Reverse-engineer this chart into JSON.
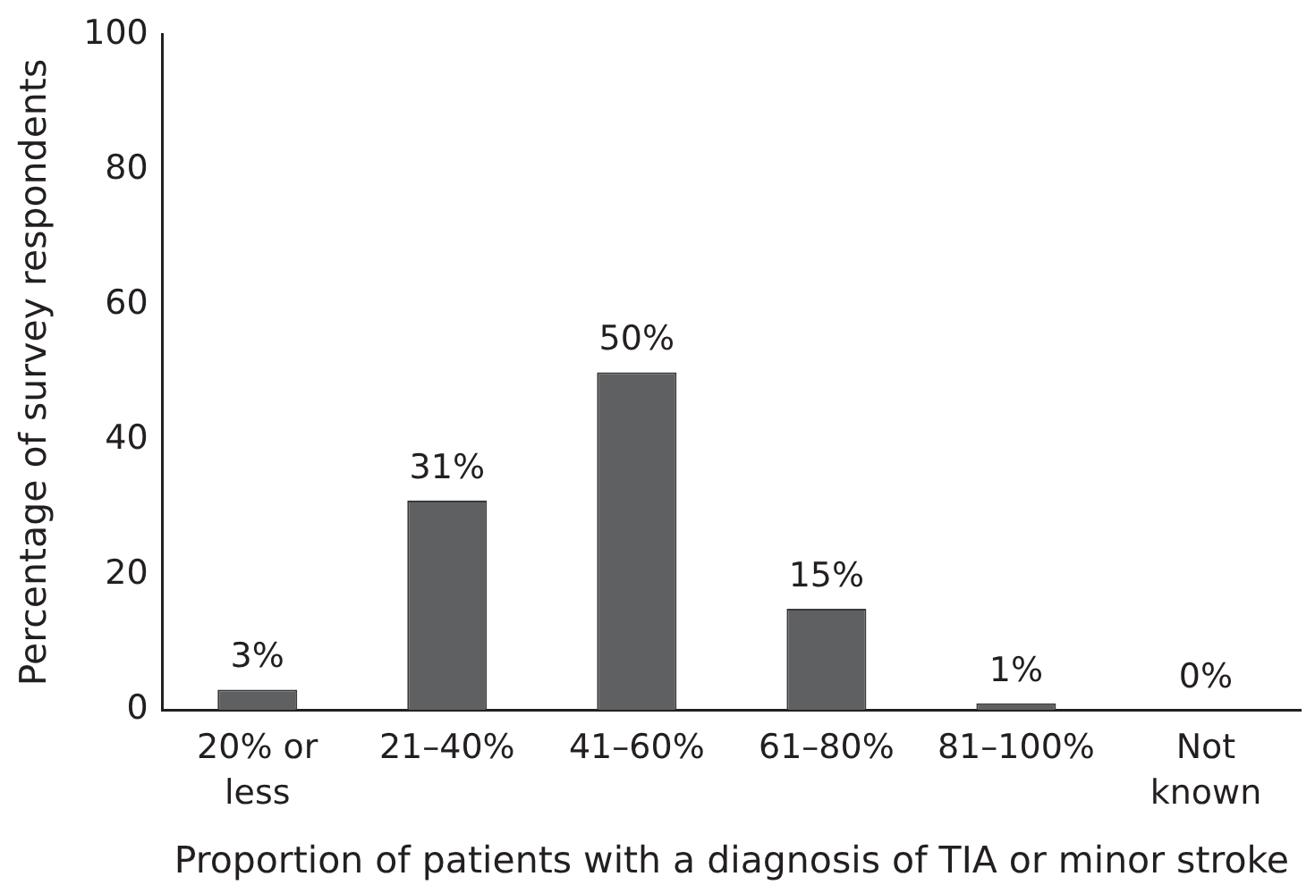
{
  "chart_data": {
    "type": "bar",
    "xlabel": "Proportion of patients with a diagnosis of TIA or minor stroke",
    "ylabel": "Percentage of survey respondents",
    "categories": [
      "20% or less",
      "21–40%",
      "41–60%",
      "61–80%",
      "81–100%",
      "Not known"
    ],
    "values": [
      3,
      31,
      50,
      15,
      1,
      0
    ],
    "value_labels": [
      "3%",
      "31%",
      "50%",
      "15%",
      "1%",
      "0%"
    ],
    "color": "#5f6062",
    "ylim": [
      0,
      100
    ],
    "yticks": [
      0,
      20,
      40,
      60,
      80,
      100
    ],
    "grid": false,
    "legend": false
  }
}
